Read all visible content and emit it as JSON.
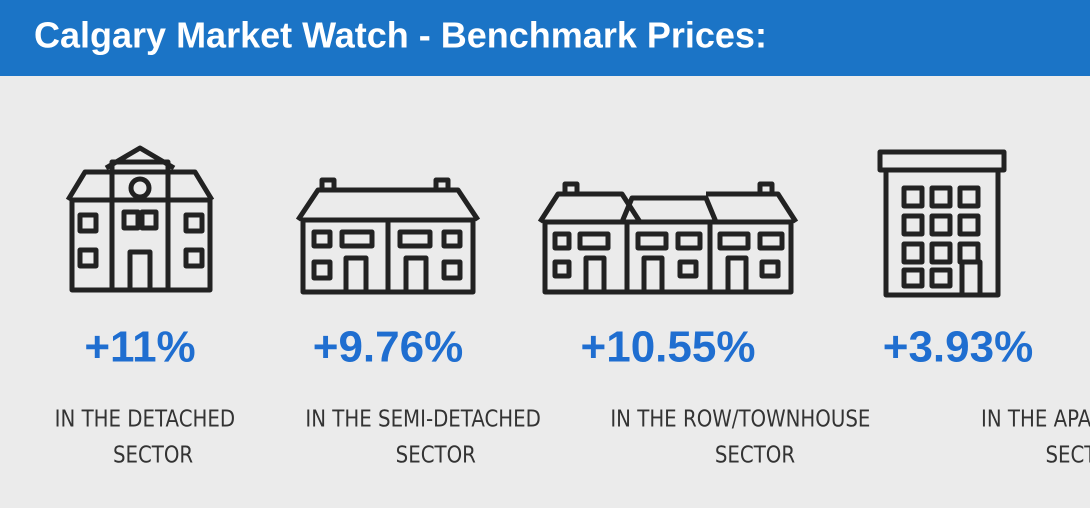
{
  "header": {
    "title": "Calgary Market Watch -  Benchmark Prices:"
  },
  "items": [
    {
      "value": "+11%",
      "label": [
        "IN THE DETACHED",
        "SECTOR"
      ]
    },
    {
      "value": "+9.76%",
      "label": [
        "IN THE SEMI-DETACHED",
        "SECTOR"
      ]
    },
    {
      "value": "+10.55%",
      "label": [
        "IN THE ROW/TOWNHOUSE",
        "SECTOR"
      ]
    },
    {
      "value": "+3.93%",
      "label": [
        "IN THE APARTMENT",
        "SECTOR"
      ]
    }
  ]
}
